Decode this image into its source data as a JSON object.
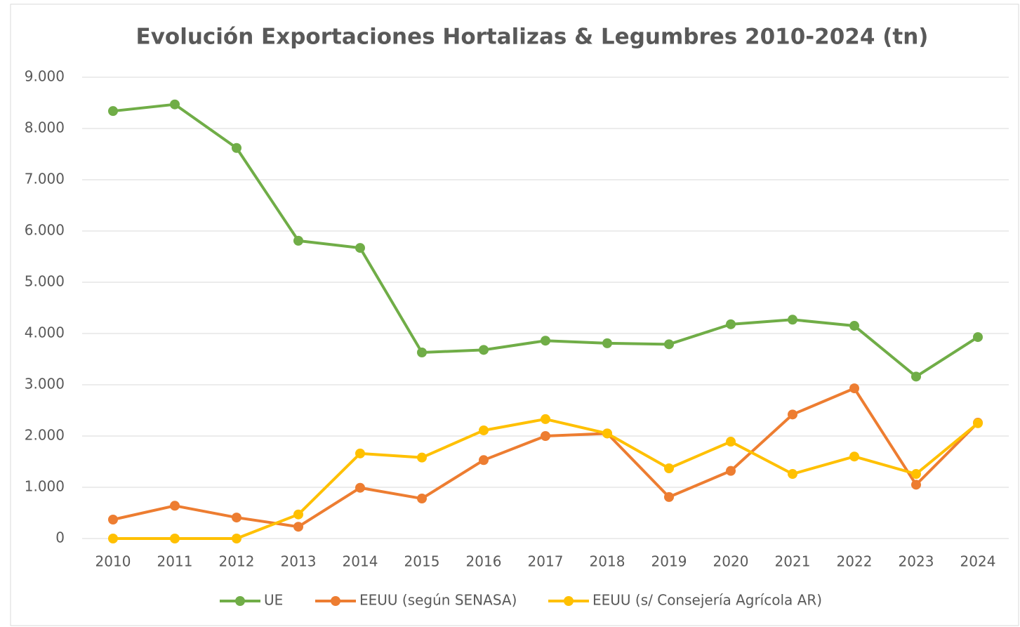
{
  "chart_data": {
    "type": "line",
    "title": "Evolución Exportaciones Hortalizas & Legumbres 2010-2024 (tn)",
    "categories": [
      "2010",
      "2011",
      "2012",
      "2013",
      "2014",
      "2015",
      "2016",
      "2017",
      "2018",
      "2019",
      "2020",
      "2021",
      "2022",
      "2023",
      "2024"
    ],
    "series": [
      {
        "name": "UE",
        "color": "#70ad47",
        "values": [
          8340,
          8470,
          7620,
          5810,
          5670,
          3630,
          3680,
          3860,
          3810,
          3790,
          4180,
          4270,
          4150,
          3160,
          3930
        ]
      },
      {
        "name": "EEUU (según SENASA)",
        "color": "#ed7d31",
        "values": [
          370,
          640,
          410,
          230,
          990,
          780,
          1530,
          2000,
          2050,
          810,
          1320,
          2420,
          2930,
          1050,
          2260
        ]
      },
      {
        "name": "EEUU (s/ Consejería Agrícola AR)",
        "color": "#ffc000",
        "values": [
          0,
          0,
          0,
          470,
          1660,
          1580,
          2110,
          2330,
          2050,
          1370,
          1890,
          1260,
          1600,
          1260,
          2250
        ]
      }
    ],
    "ylim": [
      0,
      9000
    ],
    "yticks": [
      0,
      {
        "value": 1000,
        "label": "1.000"
      },
      {
        "value": 2000,
        "label": "2.000"
      },
      {
        "value": 3000,
        "label": "3.000"
      },
      {
        "value": 4000,
        "label": "4.000"
      },
      {
        "value": 5000,
        "label": "5.000"
      },
      {
        "value": 6000,
        "label": "6.000"
      },
      {
        "value": 7000,
        "label": "7.000"
      },
      {
        "value": 8000,
        "label": "8.000"
      },
      {
        "value": 9000,
        "label": "9.000"
      }
    ],
    "grid": true,
    "legend": "bottom"
  }
}
